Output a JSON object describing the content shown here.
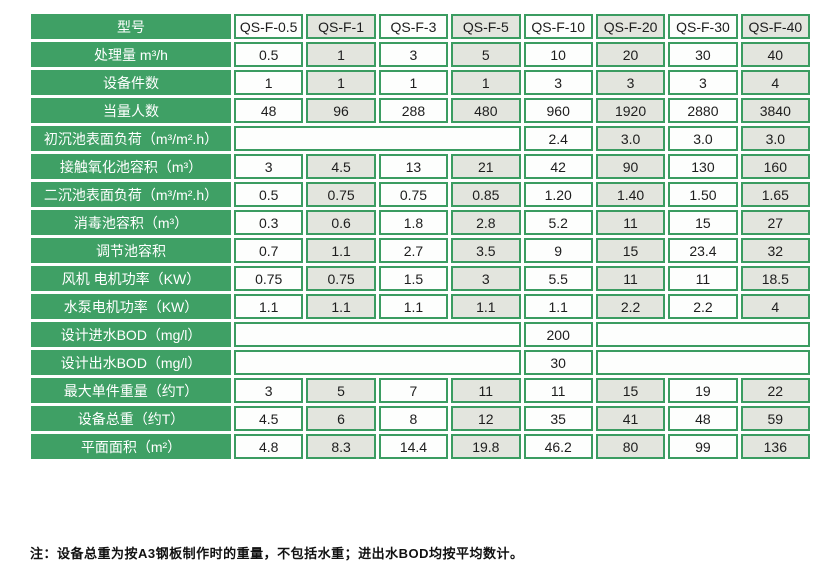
{
  "colors": {
    "header_green": "#3FA065",
    "border_green": "#3B9C61",
    "cell_white": "#FDFEFD",
    "cell_alt_gray": "#E3E5DE",
    "cell_text": "#1D1D1D",
    "label_text": "#FFFFFF",
    "note_text": "#111111"
  },
  "table": {
    "header": {
      "label": "型号",
      "models": [
        "QS-F-0.5",
        "QS-F-1",
        "QS-F-3",
        "QS-F-5",
        "QS-F-10",
        "QS-F-20",
        "QS-F-30",
        "QS-F-40"
      ]
    },
    "rows": [
      {
        "label": "处理量 m³/h",
        "cells": [
          "0.5",
          "1",
          "3",
          "5",
          "10",
          "20",
          "30",
          "40"
        ]
      },
      {
        "label": "设备件数",
        "cells": [
          "1",
          "1",
          "1",
          "1",
          "3",
          "3",
          "3",
          "4"
        ]
      },
      {
        "label": "当量人数",
        "cells": [
          "48",
          "96",
          "288",
          "480",
          "960",
          "1920",
          "2880",
          "3840"
        ]
      },
      {
        "label": "初沉池表面负荷（m³/m².h）",
        "cells": [
          {
            "span": 4,
            "text": ""
          },
          "2.4",
          "3.0",
          "3.0",
          "3.0"
        ]
      },
      {
        "label": "接触氧化池容积（m³）",
        "cells": [
          "3",
          "4.5",
          "13",
          "21",
          "42",
          "90",
          "130",
          "160"
        ]
      },
      {
        "label": "二沉池表面负荷（m³/m².h）",
        "cells": [
          "0.5",
          "0.75",
          "0.75",
          "0.85",
          "1.20",
          "1.40",
          "1.50",
          "1.65"
        ]
      },
      {
        "label": "消毒池容积（m³）",
        "cells": [
          "0.3",
          "0.6",
          "1.8",
          "2.8",
          "5.2",
          "11",
          "15",
          "27"
        ]
      },
      {
        "label": "调节池容积",
        "cells": [
          "0.7",
          "1.1",
          "2.7",
          "3.5",
          "9",
          "15",
          "23.4",
          "32"
        ]
      },
      {
        "label": "风机 电机功率（KW）",
        "cells": [
          "0.75",
          "0.75",
          "1.5",
          "3",
          "5.5",
          "11",
          "11",
          "18.5"
        ]
      },
      {
        "label": "水泵电机功率（KW）",
        "cells": [
          "1.1",
          "1.1",
          "1.1",
          "1.1",
          "1.1",
          "2.2",
          "2.2",
          "4"
        ]
      },
      {
        "label": "设计进水BOD（mg/l）",
        "cells": [
          {
            "span": 4,
            "text": ""
          },
          "200",
          {
            "span": 3,
            "text": ""
          }
        ]
      },
      {
        "label": "设计出水BOD（mg/l）",
        "cells": [
          {
            "span": 4,
            "text": ""
          },
          "30",
          {
            "span": 3,
            "text": ""
          }
        ]
      },
      {
        "label": "最大单件重量（约T）",
        "cells": [
          "3",
          "5",
          "7",
          "11",
          "11",
          "15",
          "19",
          "22"
        ]
      },
      {
        "label": "设备总重（约T）",
        "cells": [
          "4.5",
          "6",
          "8",
          "12",
          "35",
          "41",
          "48",
          "59"
        ]
      },
      {
        "label": "平面面积（m²）",
        "cells": [
          "4.8",
          "8.3",
          "14.4",
          "19.8",
          "46.2",
          "80",
          "99",
          "136"
        ]
      }
    ]
  },
  "note": "注：设备总重为按A3钢板制作时的重量，不包括水重；进出水BOD均按平均数计。"
}
